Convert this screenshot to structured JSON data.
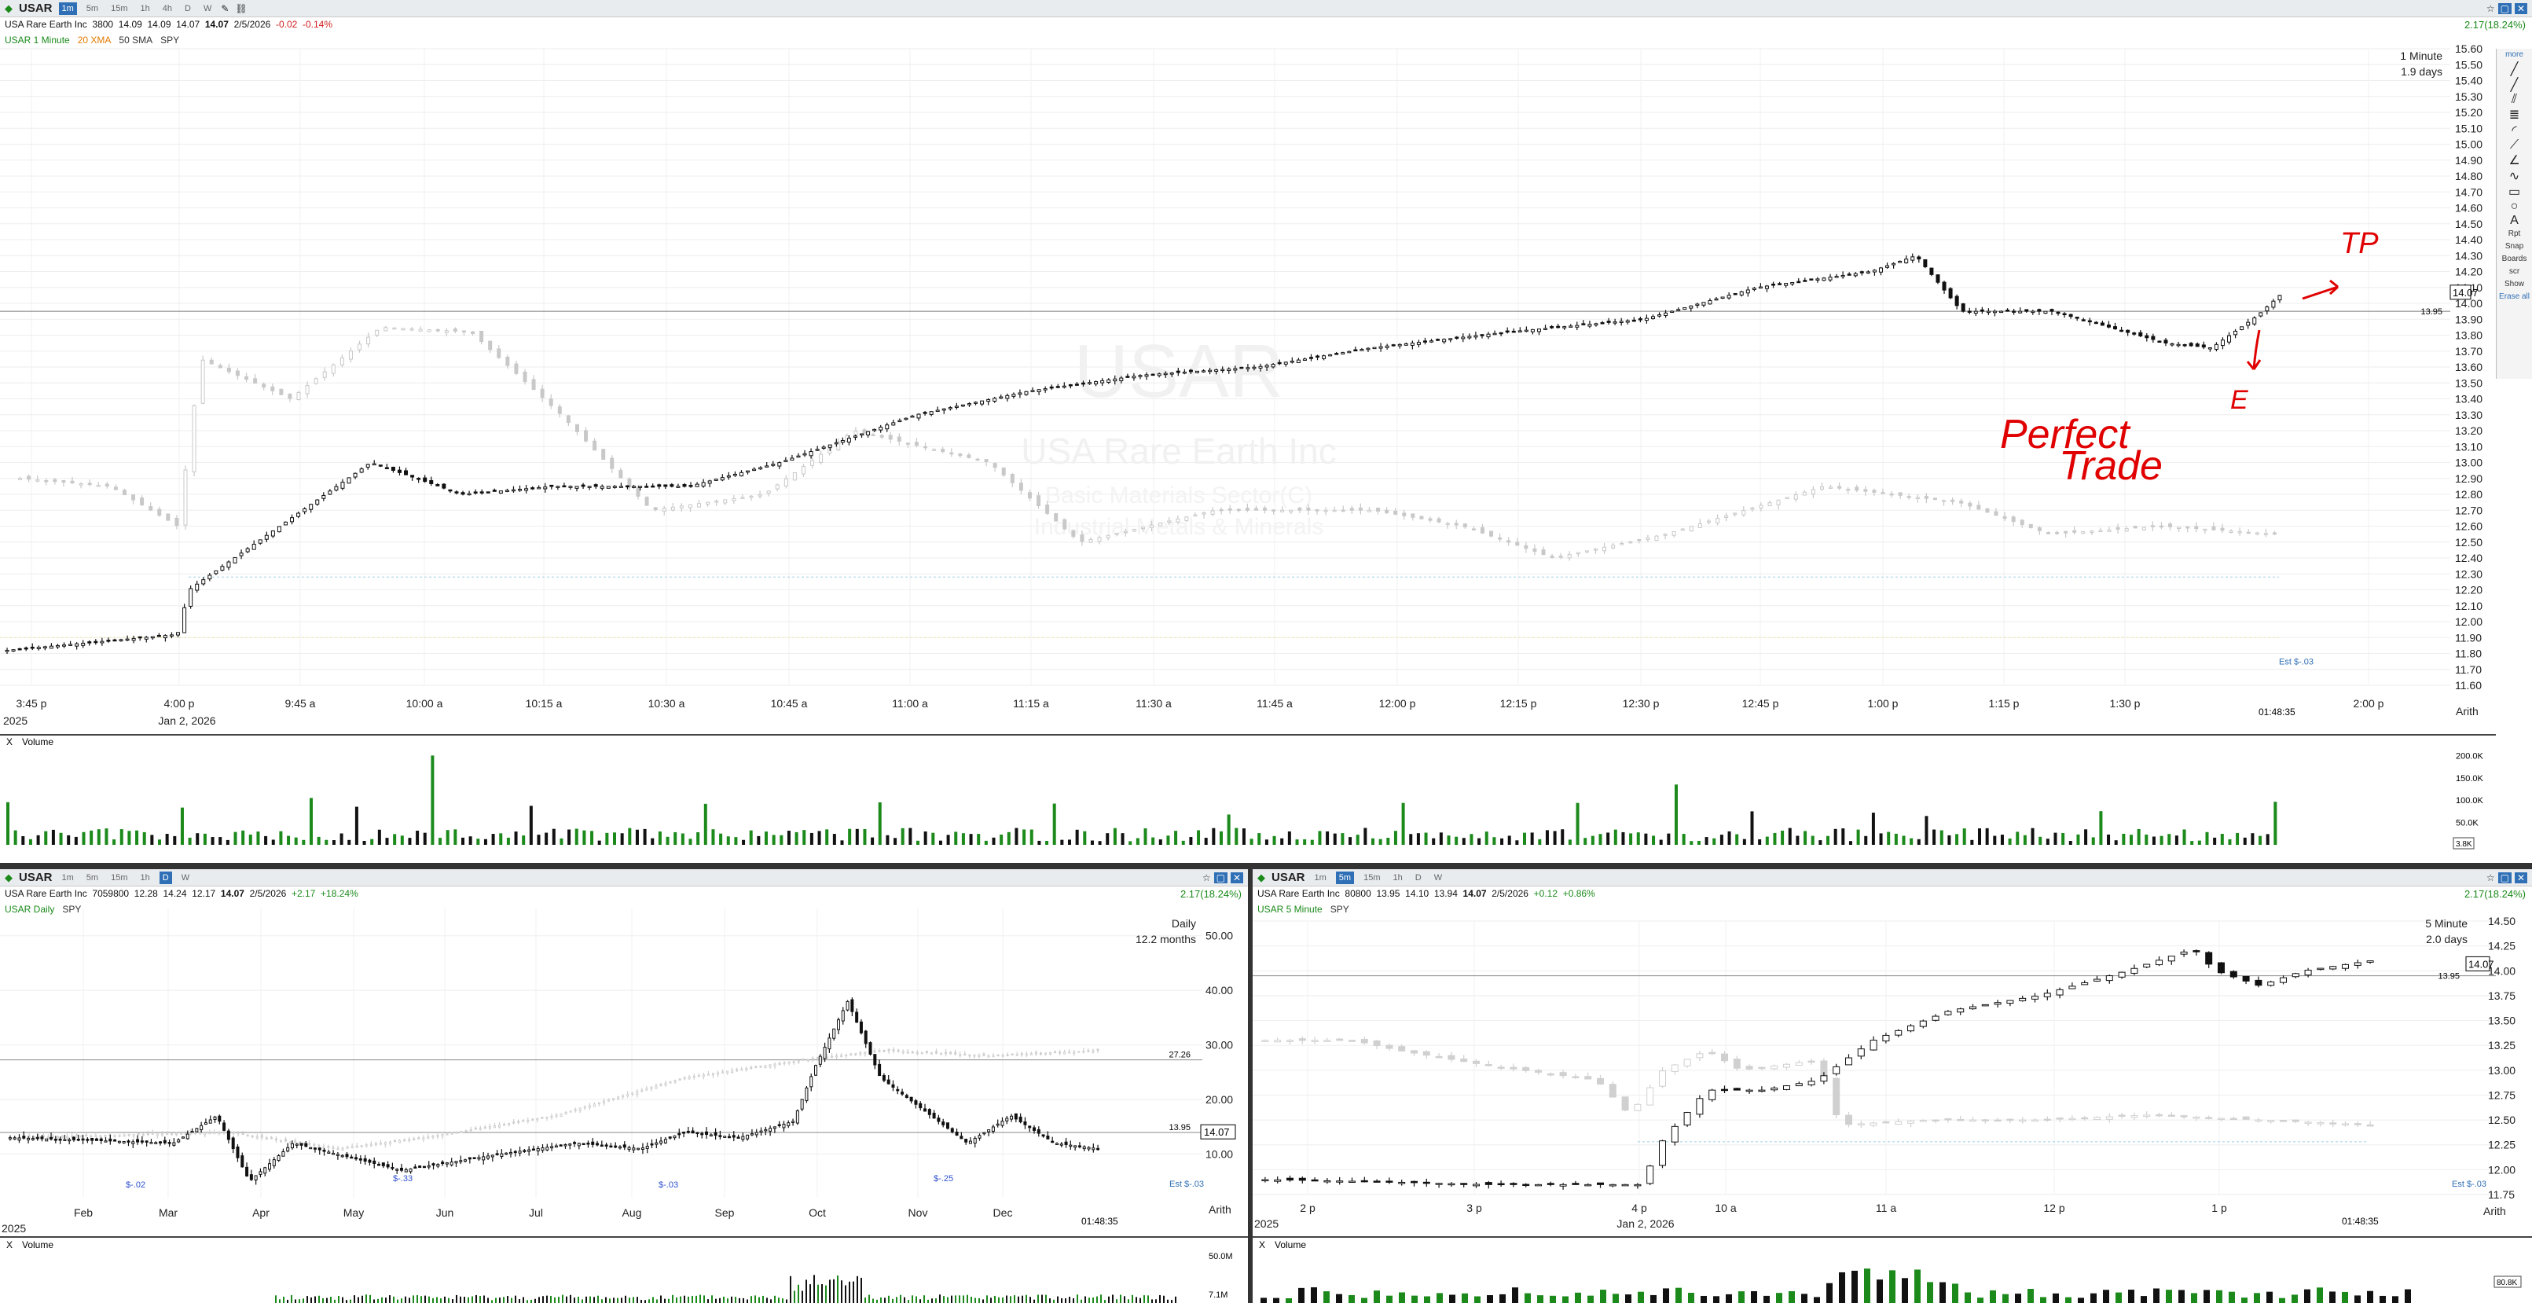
{
  "top_pane": {
    "symbol": "USAR",
    "timeframes": [
      "1m",
      "5m",
      "15m",
      "1h",
      "4h",
      "D",
      "W"
    ],
    "active_timeframe": "1m",
    "quote": {
      "desc": "USA Rare Earth Inc",
      "vol": "3800",
      "o": "14.09",
      "h": "14.09",
      "l": "14.07",
      "c": "14.07",
      "date": "2/5/2026",
      "chg": "-0.02",
      "pct": "-0.14%"
    },
    "studies": {
      "main": "USAR 1 Minute",
      "s1": "20 XMA",
      "s2": "50 SMA",
      "s3": "SPY"
    },
    "change_badge": "2.17(18.24%)",
    "interval_label": "1 Minute",
    "span_label": "1.9 days",
    "watermark": {
      "symbol": "USAR",
      "name": "USA Rare Earth Inc",
      "sector": "Basic Materials Sector(C)",
      "industry": "Industrial Metals & Minerals"
    },
    "price_ticks": [
      "15.60",
      "15.50",
      "15.40",
      "15.30",
      "15.20",
      "15.10",
      "15.00",
      "14.90",
      "14.80",
      "14.70",
      "14.60",
      "14.50",
      "14.40",
      "14.30",
      "14.20",
      "14.10",
      "14.00",
      "13.90",
      "13.80",
      "13.70",
      "13.60",
      "13.50",
      "13.40",
      "13.30",
      "13.20",
      "13.10",
      "13.00",
      "12.90",
      "12.80",
      "12.70",
      "12.60",
      "12.50",
      "12.40",
      "12.30",
      "12.20",
      "12.10",
      "12.00",
      "11.90",
      "11.80",
      "11.70",
      "11.60"
    ],
    "time_ticks": [
      "3:45 p",
      "4:00 p",
      "9:45 a",
      "10:00 a",
      "10:15 a",
      "10:30 a",
      "10:45 a",
      "11:00 a",
      "11:15 a",
      "11:30 a",
      "11:45 a",
      "12:00 p",
      "12:15 p",
      "12:30 p",
      "12:45 p",
      "1:00 p",
      "1:15 p",
      "1:30 p",
      "2:00 p"
    ],
    "date_under_axis": "Jan 2, 2026",
    "year_stub": "2025",
    "last_price": "14.07",
    "ref_price": "13.95",
    "clock": "01:48:35",
    "scale_mode": "Arith",
    "est_label": "Est $-.03",
    "volume_label": "Volume",
    "vol_ticks": [
      "200.0K",
      "150.0K",
      "100.0K",
      "50.0K"
    ],
    "vol_last": "3.8K",
    "annotation": {
      "tp": "TP",
      "e": "E",
      "line1": "Perfect",
      "line2": "Trade"
    }
  },
  "sidebar": {
    "items": [
      "more",
      "Rpt",
      "Snap",
      "Boards",
      "scr",
      "Show",
      "Erase all"
    ]
  },
  "bottom_left": {
    "symbol": "USAR",
    "quote": {
      "desc": "USA Rare Earth Inc",
      "vol": "7059800",
      "o": "12.28",
      "h": "14.24",
      "l": "12.17",
      "c": "14.07",
      "date": "2/5/2026",
      "chg": "+2.17",
      "pct": "+18.24%"
    },
    "studies": {
      "main": "USAR Daily",
      "s1": "SPY"
    },
    "change_badge": "2.17(18.24%)",
    "interval_label": "Daily",
    "span_label": "12.2 months",
    "price_ticks": [
      "50.00",
      "40.00",
      "30.00",
      "20.00",
      "10.00"
    ],
    "time_ticks": [
      "Feb",
      "Mar",
      "Apr",
      "May",
      "Jun",
      "Jul",
      "Aug",
      "Sep",
      "Oct",
      "Nov",
      "Dec"
    ],
    "level1": "27.26",
    "level2": "13.95",
    "last_price": "14.07",
    "clock": "01:48:35",
    "scale_mode": "Arith",
    "est_label": "Est $-.03",
    "year_stub": "2025",
    "volume_label": "Volume",
    "vol_ticks": [
      "50.0M"
    ],
    "vol_last": "7.1M",
    "event_labels": [
      "$-.02",
      "$-.33",
      "$-.03",
      "$-.25"
    ]
  },
  "bottom_right": {
    "symbol": "USAR",
    "quote": {
      "desc": "USA Rare Earth Inc",
      "vol": "80800",
      "o": "13.95",
      "h": "14.10",
      "l": "13.94",
      "c": "14.07",
      "date": "2/5/2026",
      "chg": "+0.12",
      "pct": "+0.86%"
    },
    "studies": {
      "main": "USAR 5 Minute",
      "s1": "SPY"
    },
    "change_badge": "2.17(18.24%)",
    "interval_label": "5 Minute",
    "span_label": "2.0 days",
    "price_ticks": [
      "14.50",
      "14.25",
      "14.00",
      "13.75",
      "13.50",
      "13.25",
      "13.00",
      "12.75",
      "12.50",
      "12.25",
      "12.00",
      "11.75"
    ],
    "time_ticks": [
      "2 p",
      "3 p",
      "4 p",
      "10 a",
      "11 a",
      "12 p",
      "1 p"
    ],
    "date_under_axis": "Jan 2, 2026",
    "year_stub": "2025",
    "last_price": "14.07",
    "ref_price": "13.95",
    "clock": "01:48:35",
    "scale_mode": "Arith",
    "est_label": "Est $-.03",
    "volume_label": "Volume",
    "vol_last": "80.8K"
  },
  "colors": {
    "up": "#1b8a1b",
    "down": "#111111",
    "spy": "#c8c8c8",
    "grid": "#e9e9e9",
    "accent": "#2f6fb5",
    "ink": "#e00000"
  }
}
